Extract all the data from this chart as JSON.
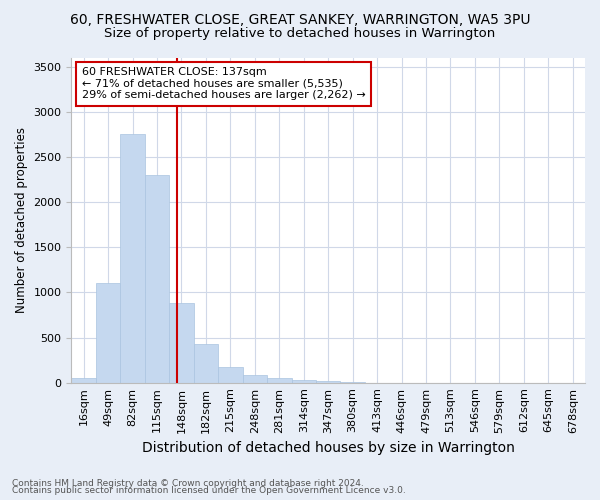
{
  "title": "60, FRESHWATER CLOSE, GREAT SANKEY, WARRINGTON, WA5 3PU",
  "subtitle": "Size of property relative to detached houses in Warrington",
  "xlabel": "Distribution of detached houses by size in Warrington",
  "ylabel": "Number of detached properties",
  "categories": [
    "16sqm",
    "49sqm",
    "82sqm",
    "115sqm",
    "148sqm",
    "182sqm",
    "215sqm",
    "248sqm",
    "281sqm",
    "314sqm",
    "347sqm",
    "380sqm",
    "413sqm",
    "446sqm",
    "479sqm",
    "513sqm",
    "546sqm",
    "579sqm",
    "612sqm",
    "645sqm",
    "678sqm"
  ],
  "values": [
    50,
    1100,
    2750,
    2300,
    880,
    430,
    170,
    90,
    50,
    30,
    20,
    5,
    0,
    0,
    0,
    0,
    0,
    0,
    0,
    0,
    0
  ],
  "bar_color": "#c5d8ef",
  "bar_edge_color": "#aac4e0",
  "plot_bg_color": "#ffffff",
  "fig_bg_color": "#e8eef7",
  "grid_color": "#d0d8e8",
  "red_line_x": 3.82,
  "annotation_text": "60 FRESHWATER CLOSE: 137sqm\n← 71% of detached houses are smaller (5,535)\n29% of semi-detached houses are larger (2,262) →",
  "annotation_box_color": "#ffffff",
  "annotation_box_edge_color": "#cc0000",
  "ylim": [
    0,
    3600
  ],
  "yticks": [
    0,
    500,
    1000,
    1500,
    2000,
    2500,
    3000,
    3500
  ],
  "footer_line1": "Contains HM Land Registry data © Crown copyright and database right 2024.",
  "footer_line2": "Contains public sector information licensed under the Open Government Licence v3.0.",
  "title_fontsize": 10,
  "subtitle_fontsize": 9.5,
  "xlabel_fontsize": 10,
  "ylabel_fontsize": 8.5,
  "tick_fontsize": 8,
  "annotation_fontsize": 8,
  "footer_fontsize": 6.5
}
